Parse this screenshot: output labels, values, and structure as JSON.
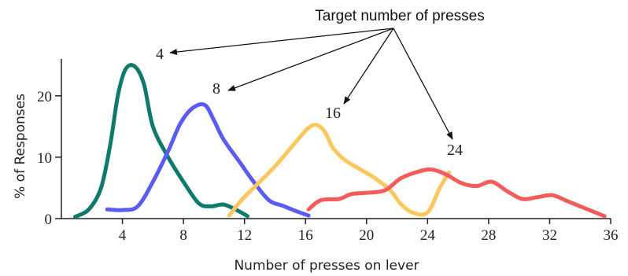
{
  "chart_data": {
    "type": "line",
    "title": "",
    "xlabel": "Number of presses on lever",
    "ylabel": "% of Responses",
    "xlim": [
      0,
      36
    ],
    "ylim": [
      0,
      26
    ],
    "xticks": [
      4,
      8,
      12,
      16,
      20,
      24,
      28,
      32,
      36
    ],
    "yticks": [
      0,
      10,
      20
    ],
    "grid": false,
    "annotation": "Target number of presses",
    "series": [
      {
        "name": "4",
        "color": "#0f7a6c",
        "x": [
          0.9,
          1.8,
          2.6,
          3.2,
          3.7,
          4.2,
          4.8,
          5.4,
          6.0,
          7.0,
          8.0,
          9.0,
          9.8,
          10.6,
          11.4,
          12.2
        ],
        "y": [
          0.3,
          1.5,
          5.0,
          12.0,
          20.0,
          24.3,
          24.8,
          22.0,
          15.0,
          10.0,
          6.0,
          2.5,
          2.0,
          2.3,
          1.5,
          0.4
        ]
      },
      {
        "name": "8",
        "color": "#5b5bf2",
        "x": [
          3.0,
          4.0,
          5.0,
          6.0,
          7.0,
          7.8,
          8.6,
          9.4,
          10.0,
          10.6,
          11.6,
          12.6,
          13.6,
          14.5,
          15.4,
          16.2
        ],
        "y": [
          1.5,
          1.4,
          2.0,
          6.0,
          11.0,
          15.5,
          18.0,
          18.5,
          16.0,
          13.0,
          9.5,
          6.0,
          3.0,
          2.1,
          1.2,
          0.5
        ]
      },
      {
        "name": "16",
        "color": "#ffc65e",
        "x": [
          11.0,
          11.8,
          12.8,
          14.0,
          15.2,
          16.2,
          16.8,
          17.3,
          17.8,
          18.6,
          19.6,
          20.6,
          21.6,
          22.2,
          23.0,
          24.0,
          24.8,
          25.4
        ],
        "y": [
          0.5,
          3.0,
          5.5,
          8.5,
          12.0,
          14.8,
          15.2,
          14.0,
          11.5,
          9.5,
          8.0,
          6.5,
          4.5,
          2.5,
          1.0,
          1.0,
          5.0,
          7.5
        ]
      },
      {
        "name": "24",
        "color": "#f45b5b",
        "x": [
          16.2,
          17.0,
          18.2,
          19.0,
          20.0,
          21.2,
          22.2,
          23.2,
          24.2,
          25.2,
          26.2,
          27.2,
          28.2,
          29.2,
          30.2,
          31.2,
          32.2,
          33.2,
          34.2,
          35.6
        ],
        "y": [
          1.5,
          3.0,
          3.2,
          4.0,
          4.2,
          4.6,
          6.5,
          7.5,
          8.0,
          7.2,
          5.8,
          5.3,
          6.0,
          4.5,
          3.2,
          3.5,
          3.8,
          2.8,
          1.8,
          0.4
        ]
      }
    ]
  }
}
